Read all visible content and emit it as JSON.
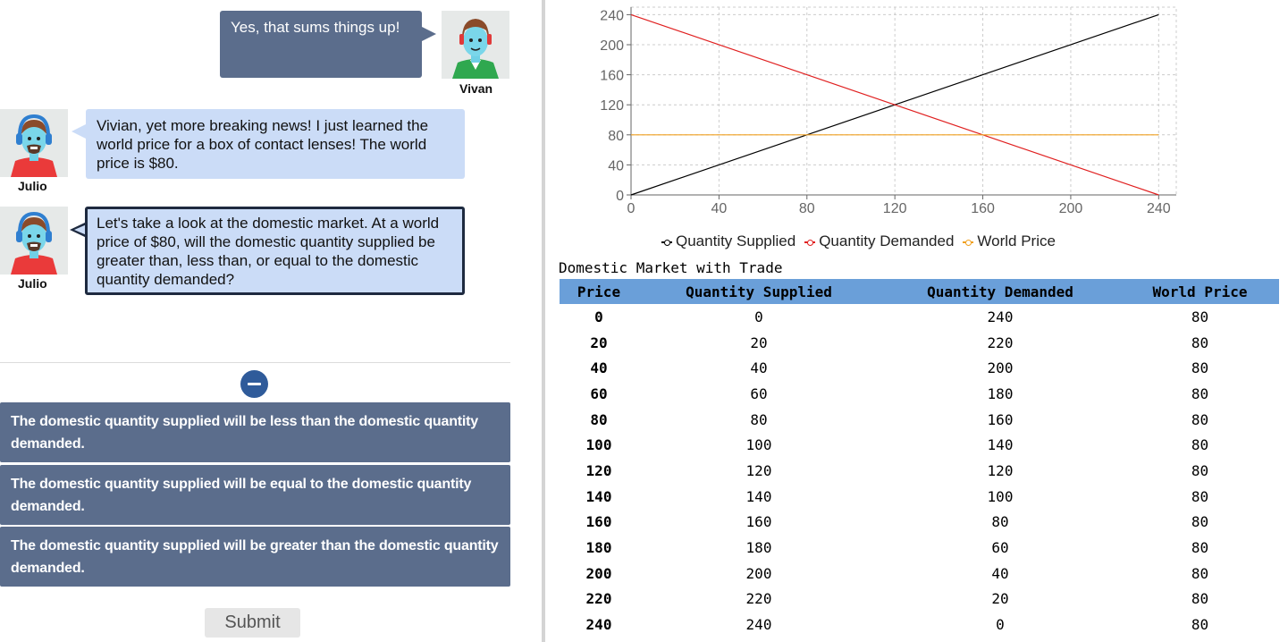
{
  "chat": {
    "messages": [
      {
        "speaker": "Vivan",
        "text": "Yes, that sums things up!"
      },
      {
        "speaker": "Julio",
        "text": "Vivian, yet more breaking news!  I just learned the world price for a box of contact lenses!  The world price is $80."
      },
      {
        "speaker": "Julio",
        "text": "Let's take a look at the domestic market. At a world price of $80, will the domestic quantity supplied be greater than, less than, or equal to the domestic quantity demanded?"
      }
    ]
  },
  "options": [
    "The domestic quantity supplied will be less than the domestic quantity demanded.",
    "The domestic quantity supplied will be equal to the domestic quantity demanded.",
    "The domestic quantity supplied will be greater than the domestic quantity demanded."
  ],
  "submit_label": "Submit",
  "chart_data": {
    "type": "line",
    "xlim": [
      0,
      248
    ],
    "ylim": [
      0,
      250
    ],
    "x_ticks": [
      0,
      40,
      80,
      120,
      160,
      200,
      240
    ],
    "y_ticks": [
      0,
      40,
      80,
      120,
      160,
      200,
      240
    ],
    "grid": true,
    "legend_position": "bottom",
    "series": [
      {
        "name": "Quantity Supplied",
        "color": "#000000",
        "points": [
          [
            0,
            0
          ],
          [
            240,
            240
          ]
        ]
      },
      {
        "name": "Quantity Demanded",
        "color": "#e02020",
        "points": [
          [
            0,
            240
          ],
          [
            240,
            0
          ]
        ]
      },
      {
        "name": "World Price",
        "color": "#f0a020",
        "points": [
          [
            0,
            80
          ],
          [
            240,
            80
          ]
        ]
      }
    ]
  },
  "table": {
    "title": "Domestic Market with Trade",
    "headers": [
      "Price",
      "Quantity Supplied",
      "Quantity Demanded",
      "World Price"
    ],
    "rows": [
      [
        "0",
        "0",
        "240",
        "80"
      ],
      [
        "20",
        "20",
        "220",
        "80"
      ],
      [
        "40",
        "40",
        "200",
        "80"
      ],
      [
        "60",
        "60",
        "180",
        "80"
      ],
      [
        "80",
        "80",
        "160",
        "80"
      ],
      [
        "100",
        "100",
        "140",
        "80"
      ],
      [
        "120",
        "120",
        "120",
        "80"
      ],
      [
        "140",
        "140",
        "100",
        "80"
      ],
      [
        "160",
        "160",
        "80",
        "80"
      ],
      [
        "180",
        "180",
        "60",
        "80"
      ],
      [
        "200",
        "200",
        "40",
        "80"
      ],
      [
        "220",
        "220",
        "20",
        "80"
      ],
      [
        "240",
        "240",
        "0",
        "80"
      ]
    ]
  }
}
